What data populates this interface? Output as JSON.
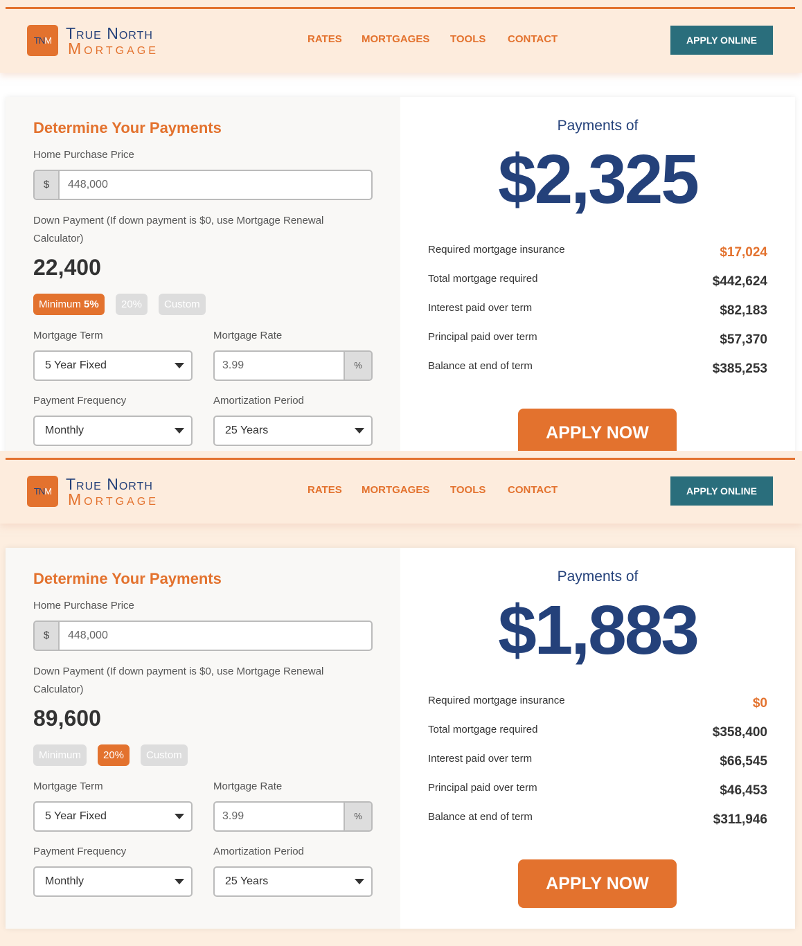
{
  "header": {
    "logo_mark": "TNM",
    "logo_line1": "True North",
    "logo_line2": "Mortgage",
    "nav": [
      "RATES",
      "MORTGAGES",
      "TOOLS",
      "CONTACT"
    ],
    "apply_online": "APPLY ONLINE"
  },
  "colors": {
    "accent": "#e3722e",
    "navy": "#24417a",
    "teal": "#2a6e7c",
    "header_bg": "#fdecdd"
  },
  "panels": [
    {
      "heading": "Determine Your Payments",
      "price_label": "Home Purchase Price",
      "currency": "$",
      "price_value": "448,000",
      "down_label": "Down Payment (If down payment is $0, use Mortgage Renewal Calculator)",
      "down_value": "22,400",
      "down_options": [
        {
          "label": "Minimum",
          "strong": "5%",
          "active": true
        },
        {
          "label": "20%",
          "active": false
        },
        {
          "label": "Custom",
          "active": false
        }
      ],
      "term_label": "Mortgage Term",
      "term_value": "5 Year Fixed",
      "rate_label": "Mortgage Rate",
      "rate_value": "3.99",
      "rate_suffix": "%",
      "freq_label": "Payment Frequency",
      "freq_value": "Monthly",
      "amort_label": "Amortization Period",
      "amort_value": "25 Years",
      "payments_of": "Payments of",
      "amount": "$2,325",
      "rows": [
        {
          "label": "Required mortgage insurance",
          "value": "$17,024"
        },
        {
          "label": "Total mortgage required",
          "value": "$442,624"
        },
        {
          "label": "Interest paid over term",
          "value": "$82,183"
        },
        {
          "label": "Principal paid over term",
          "value": "$57,370"
        },
        {
          "label": "Balance at end of term",
          "value": "$385,253"
        }
      ],
      "apply_now": "APPLY NOW"
    },
    {
      "heading": "Determine Your Payments",
      "price_label": "Home Purchase Price",
      "currency": "$",
      "price_value": "448,000",
      "down_label": "Down Payment (If down payment is $0, use Mortgage Renewal Calculator)",
      "down_value": "89,600",
      "down_options": [
        {
          "label": "Minimum",
          "strong": "",
          "active": false
        },
        {
          "label": "20%",
          "active": true
        },
        {
          "label": "Custom",
          "active": false
        }
      ],
      "term_label": "Mortgage Term",
      "term_value": "5 Year Fixed",
      "rate_label": "Mortgage Rate",
      "rate_value": "3.99",
      "rate_suffix": "%",
      "freq_label": "Payment Frequency",
      "freq_value": "Monthly",
      "amort_label": "Amortization Period",
      "amort_value": "25 Years",
      "payments_of": "Payments of",
      "amount": "$1,883",
      "rows": [
        {
          "label": "Required mortgage insurance",
          "value": "$0"
        },
        {
          "label": "Total mortgage required",
          "value": "$358,400"
        },
        {
          "label": "Interest paid over term",
          "value": "$66,545"
        },
        {
          "label": "Principal paid over term",
          "value": "$46,453"
        },
        {
          "label": "Balance at end of term",
          "value": "$311,946"
        }
      ],
      "apply_now": "APPLY NOW"
    }
  ]
}
